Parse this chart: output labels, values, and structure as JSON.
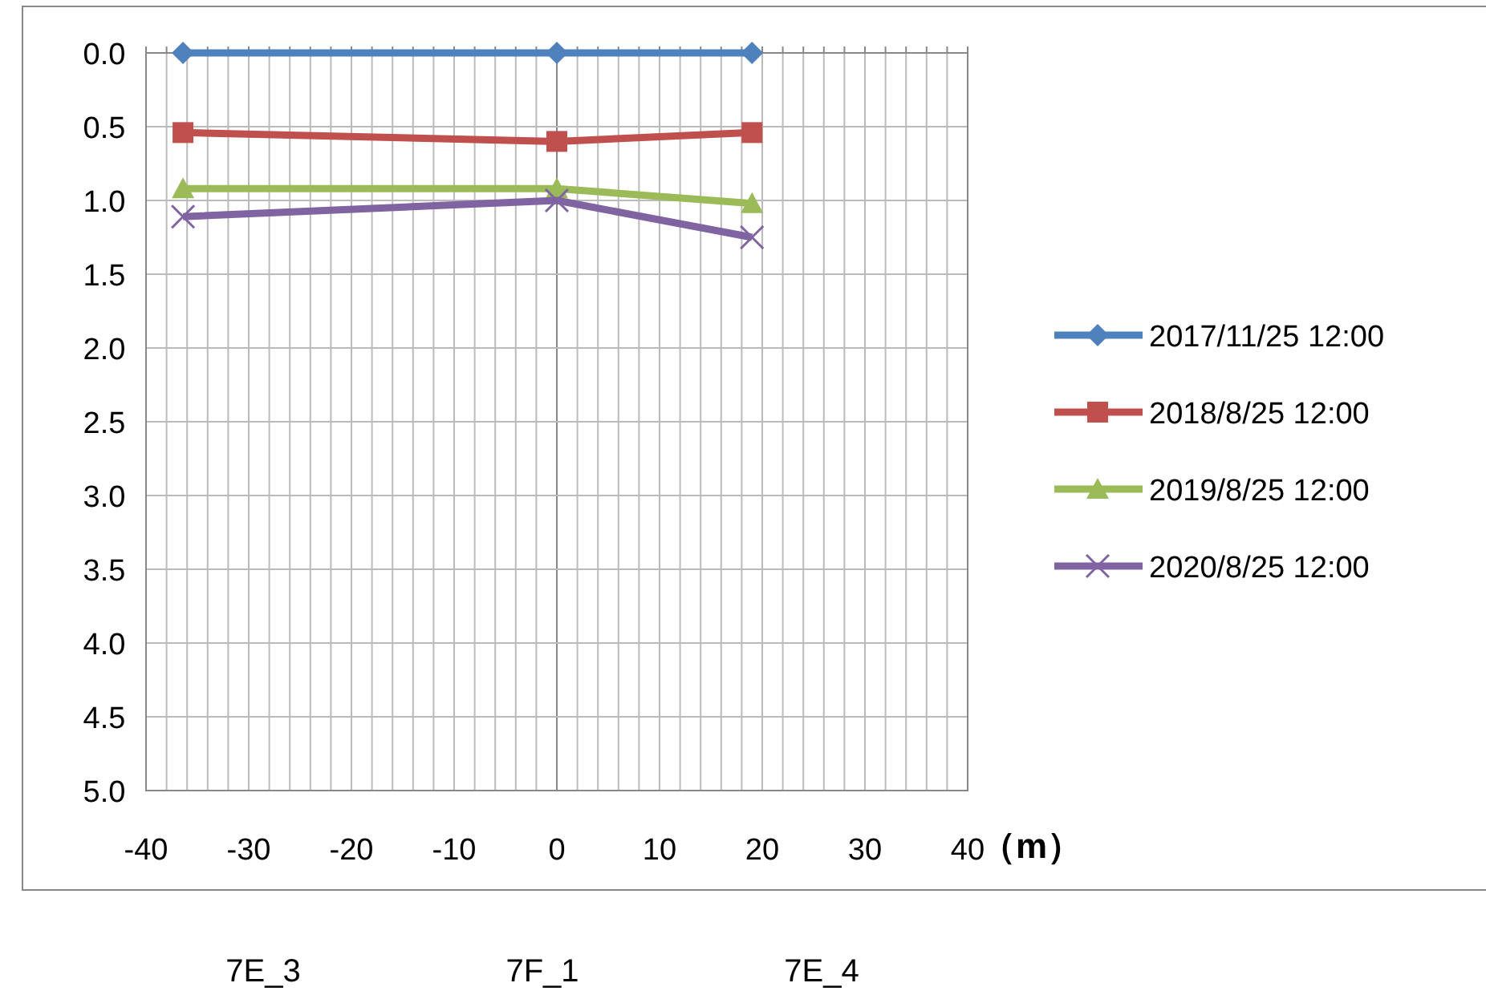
{
  "chart_data": {
    "type": "line",
    "xlabel": "（m）",
    "xlim": [
      -40,
      40
    ],
    "xticks": [
      -40,
      {
        "value": -38,
        "label": null
      },
      {
        "value": -36,
        "label": null
      },
      {
        "value": -34,
        "label": null
      },
      {
        "value": -32,
        "label": null
      },
      -30,
      {
        "value": -28,
        "label": null
      },
      {
        "value": -26,
        "label": null
      },
      {
        "value": -24,
        "label": null
      },
      {
        "value": -22,
        "label": null
      },
      -20,
      {
        "value": -18,
        "label": null
      },
      {
        "value": -16,
        "label": null
      },
      {
        "value": -14,
        "label": null
      },
      {
        "value": -12,
        "label": null
      },
      -10,
      {
        "value": -8,
        "label": null
      },
      {
        "value": -6,
        "label": null
      },
      {
        "value": -4,
        "label": null
      },
      {
        "value": -2,
        "label": null
      },
      0,
      {
        "value": 2,
        "label": null
      },
      {
        "value": 4,
        "label": null
      },
      {
        "value": 6,
        "label": null
      },
      {
        "value": 8,
        "label": null
      },
      10,
      {
        "value": 12,
        "label": null
      },
      {
        "value": 14,
        "label": null
      },
      {
        "value": 16,
        "label": null
      },
      {
        "value": 18,
        "label": null
      },
      20,
      {
        "value": 22,
        "label": null
      },
      {
        "value": 24,
        "label": null
      },
      {
        "value": 26,
        "label": null
      },
      {
        "value": 28,
        "label": null
      },
      30,
      {
        "value": 32,
        "label": null
      },
      {
        "value": 34,
        "label": null
      },
      {
        "value": 36,
        "label": null
      },
      {
        "value": 38,
        "label": null
      },
      40
    ],
    "ylim": [
      5,
      0
    ],
    "yticks": [
      {
        "value": 0,
        "label": "0.0"
      },
      {
        "value": 0.5,
        "label": "0.5"
      },
      {
        "value": 1,
        "label": "1.0"
      },
      {
        "value": 1.5,
        "label": "1.5"
      },
      {
        "value": 2,
        "label": "2.0"
      },
      {
        "value": 2.5,
        "label": "2.5"
      },
      {
        "value": 3,
        "label": "3.0"
      },
      {
        "value": 3.5,
        "label": "3.5"
      },
      {
        "value": 4,
        "label": "4.0"
      },
      {
        "value": 4.5,
        "label": "4.5"
      },
      {
        "value": 5,
        "label": "5.0"
      }
    ],
    "grid": true,
    "legend": "right",
    "line_style": "solid",
    "x": [
      -36.4,
      0,
      19
    ],
    "series": [
      {
        "name": "2017/11/25 12:00",
        "color": "#4f81bd",
        "marker": "diamond",
        "values": [
          0,
          0,
          0
        ]
      },
      {
        "name": "2018/8/25 12:00",
        "color": "#c0504d",
        "marker": "square",
        "values": [
          0.54,
          0.6,
          0.54
        ]
      },
      {
        "name": "2019/8/25 12:00",
        "color": "#9bbb59",
        "marker": "triangle",
        "values": [
          0.92,
          0.92,
          1.02
        ]
      },
      {
        "name": "2020/8/25 12:00",
        "color": "#8064a2",
        "marker": "cross",
        "values": [
          1.11,
          1.0,
          1.25
        ]
      }
    ],
    "annotations": [
      "7E_3",
      "7F_1",
      "7E_4"
    ]
  }
}
